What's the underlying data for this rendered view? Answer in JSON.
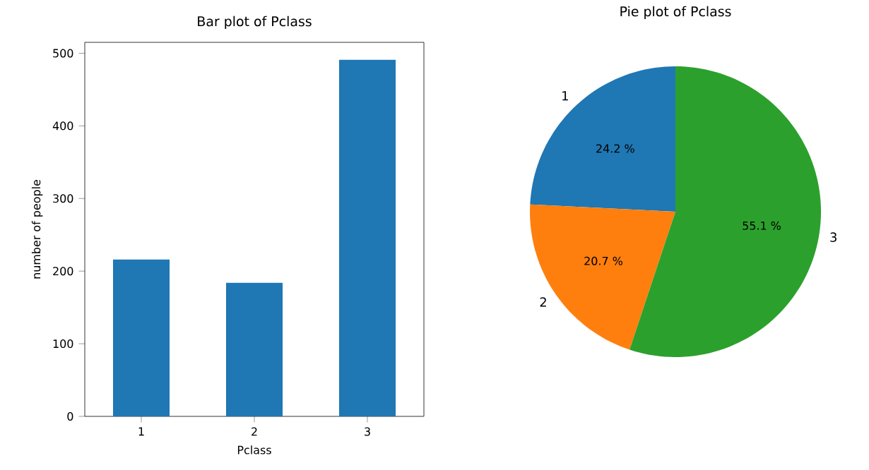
{
  "chart_data": [
    {
      "type": "bar",
      "title": "Bar plot of Pclass",
      "xlabel": "Pclass",
      "ylabel": "number of people",
      "categories": [
        "1",
        "2",
        "3"
      ],
      "values": [
        216,
        184,
        491
      ],
      "color": "#1f77b4",
      "ylim": [
        0,
        515
      ],
      "yticks": [
        0,
        100,
        200,
        300,
        400,
        500
      ]
    },
    {
      "type": "pie",
      "title": "Pie plot of Pclass",
      "categories": [
        "1",
        "2",
        "3"
      ],
      "values": [
        24.2,
        20.7,
        55.1
      ],
      "colors": [
        "#1f77b4",
        "#ff7f0e",
        "#2ca02c"
      ],
      "value_labels": [
        "24.2 %",
        "20.7 %",
        "55.1 %"
      ]
    }
  ]
}
